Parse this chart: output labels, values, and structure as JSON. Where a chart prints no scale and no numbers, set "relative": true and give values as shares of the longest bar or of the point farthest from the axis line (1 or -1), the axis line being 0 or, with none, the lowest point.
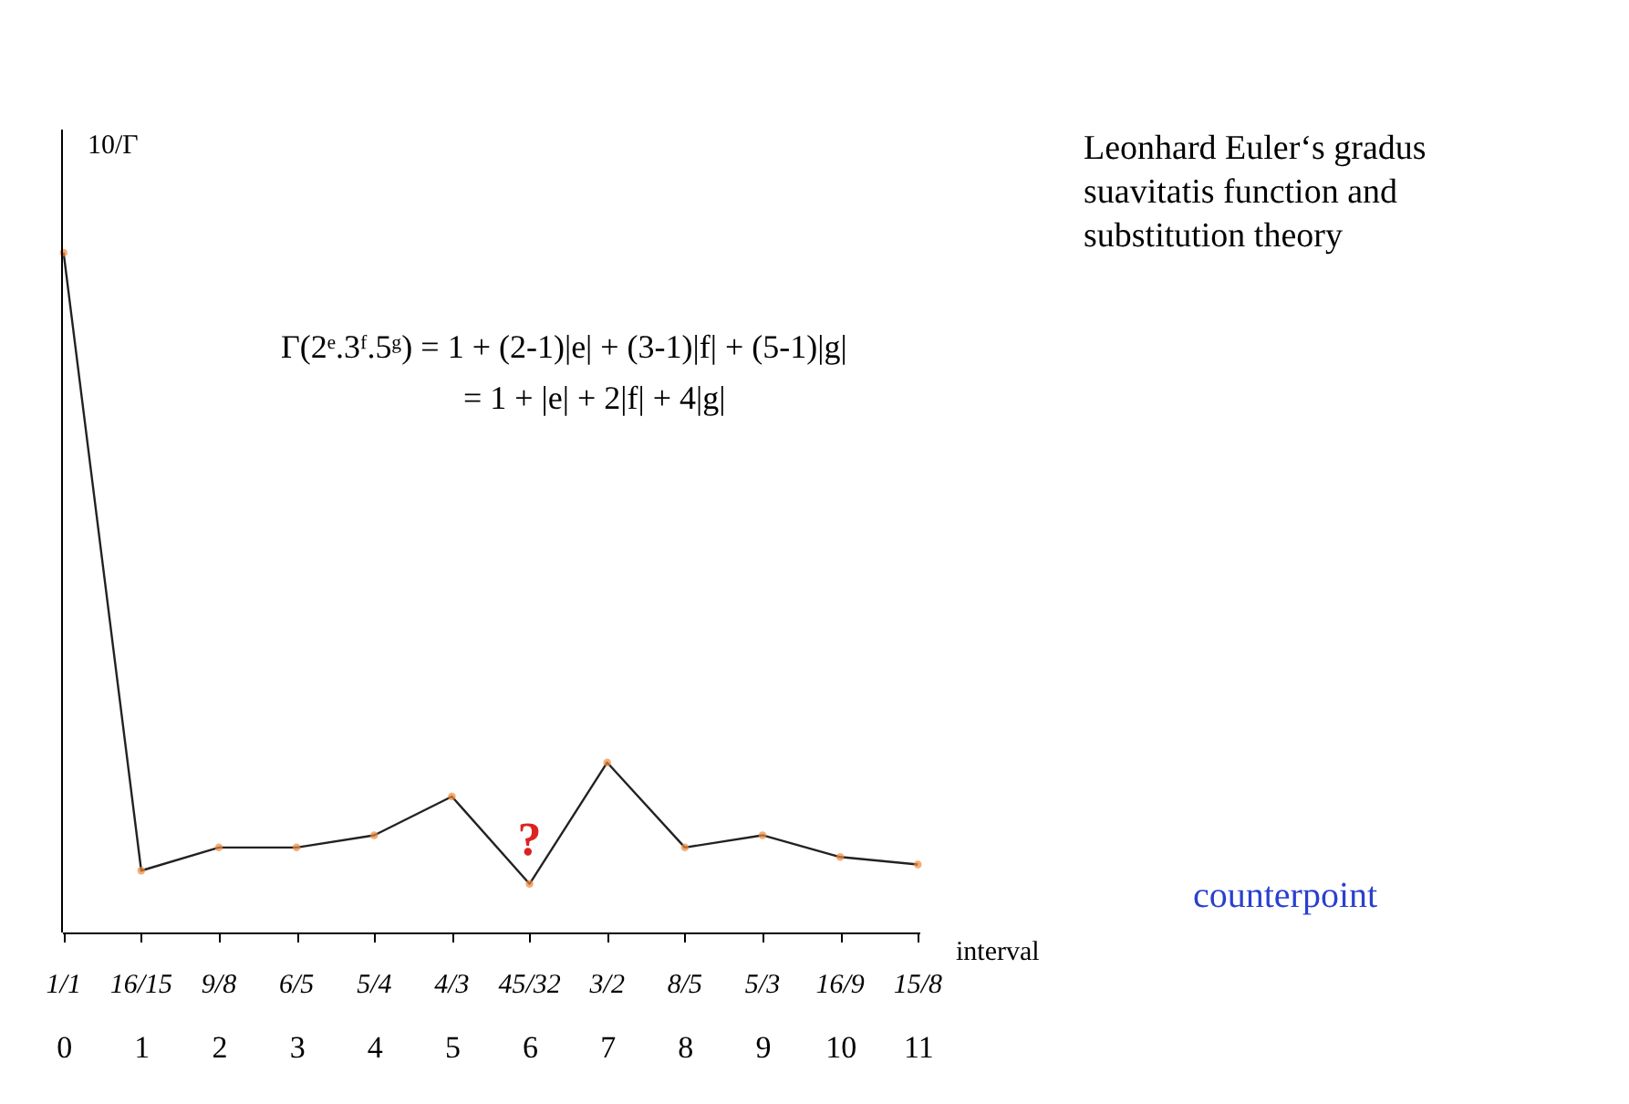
{
  "chart_data": {
    "type": "line",
    "title": "Leonhard Euler‘s gradus suavitatis function and substitution theory",
    "ylabel": "10/Γ",
    "xlabel": "interval",
    "categories": [
      "0",
      "1",
      "2",
      "3",
      "4",
      "5",
      "6",
      "7",
      "8",
      "9",
      "10",
      "11"
    ],
    "relative": true,
    "series": [
      {
        "color": "#222222",
        "values": [
          1,
          0.0909,
          0.125,
          0.125,
          0.143,
          0.2,
          0.0714,
          0.25,
          0.125,
          0.143,
          0.111,
          0.1
        ]
      }
    ],
    "marker": "circle",
    "line_style": "solid",
    "grid": false,
    "annotations": [
      "Γ(2ᵉ.3ᶠ.5ᵍ) = 1 + (2-1)|e| + (3-1)|f| + (5-1)|g|",
      "= 1 + |e| + 2|f| + 4|g|",
      "counterpoint",
      {
        "text": "?",
        "x": "6",
        "y": 0.0714
      },
      {
        "text": "1/1",
        "x": "0"
      },
      {
        "text": "16/15",
        "x": "1"
      },
      {
        "text": "9/8",
        "x": "2"
      },
      {
        "text": "6/5",
        "x": "3"
      },
      {
        "text": "5/4",
        "x": "4"
      },
      {
        "text": "4/3",
        "x": "5"
      },
      {
        "text": "45/32",
        "x": "6"
      },
      {
        "text": "3/2",
        "x": "7"
      },
      {
        "text": "8/5",
        "x": "8"
      },
      {
        "text": "5/3",
        "x": "9"
      },
      {
        "text": "16/9",
        "x": "10"
      },
      {
        "text": "15/8",
        "x": "11"
      }
    ]
  }
}
